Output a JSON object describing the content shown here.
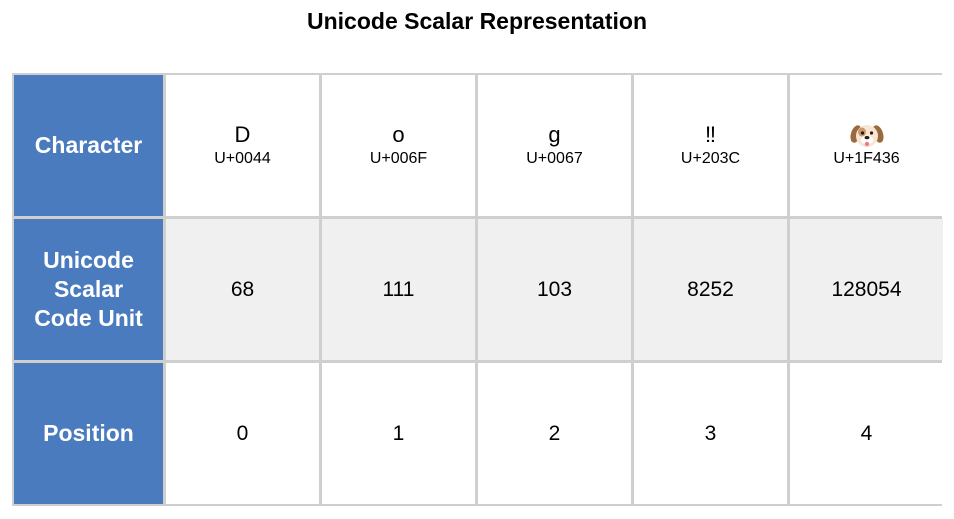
{
  "title": "Unicode Scalar Representation",
  "row_headers": {
    "character": "Character",
    "scalar": [
      "Unicode",
      "Scalar",
      "Code Unit"
    ],
    "position": "Position"
  },
  "characters": [
    {
      "glyph": "D",
      "code": "U+0044",
      "scalar": "68",
      "position": "0"
    },
    {
      "glyph": "o",
      "code": "U+006F",
      "scalar": "111",
      "position": "1"
    },
    {
      "glyph": "g",
      "code": "U+0067",
      "scalar": "103",
      "position": "2"
    },
    {
      "glyph": "‼",
      "code": "U+203C",
      "scalar": "8252",
      "position": "3"
    },
    {
      "glyph": "🐶",
      "glyph_icon": "dog-face-icon",
      "code": "U+1F436",
      "scalar": "128054",
      "position": "4"
    }
  ],
  "colors": {
    "header_bg": "#4a7bbf",
    "header_text": "#ffffff",
    "shaded_row": "#f0f0f0",
    "grid_line": "#cfcfcf"
  }
}
